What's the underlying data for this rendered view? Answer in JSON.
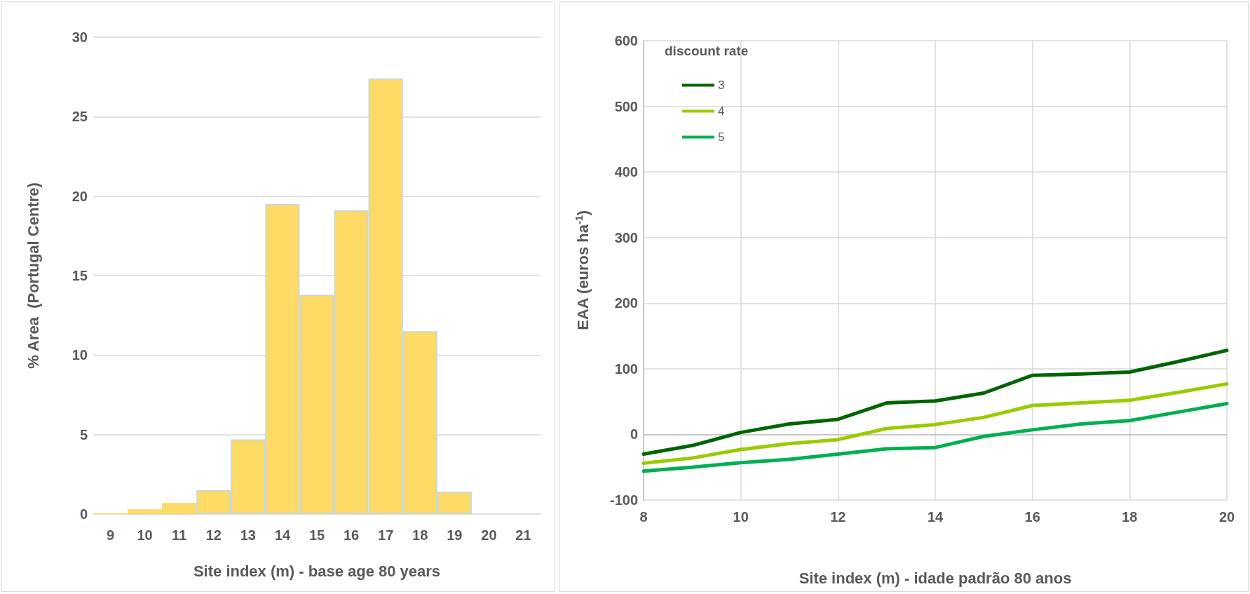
{
  "chart_data": [
    {
      "type": "bar",
      "ylabel": "% Area  (Portugal Centre)",
      "xlabel": "Site index (m) - base age 80 years",
      "categories": [
        "9",
        "10",
        "11",
        "12",
        "13",
        "14",
        "15",
        "16",
        "17",
        "18",
        "19",
        "20",
        "21"
      ],
      "values": [
        0.05,
        0.3,
        0.7,
        1.5,
        4.7,
        19.5,
        13.8,
        19.1,
        27.4,
        11.5,
        1.4,
        0,
        0
      ],
      "color": "#fdd966",
      "ylim": [
        0,
        30
      ],
      "yticks": [
        0,
        5,
        10,
        15,
        20,
        25,
        30
      ],
      "grid": "y",
      "legend": false
    },
    {
      "type": "line",
      "ylabel": "EAA (euros ha$^{-1}$)",
      "xlabel": "Site index (m) - idade padrão 80 anos",
      "legend_title": "discount rate",
      "x": [
        8,
        9,
        10,
        11,
        12,
        13,
        14,
        15,
        16,
        17,
        18,
        19,
        20
      ],
      "series": [
        {
          "name": "3",
          "color": "#006400",
          "values": [
            -30,
            -17,
            3,
            16,
            23,
            48,
            51,
            63,
            90,
            92,
            95,
            111,
            128
          ]
        },
        {
          "name": "4",
          "color": "#99cc00",
          "values": [
            -44,
            -36,
            -23,
            -14,
            -8,
            9,
            15,
            26,
            44,
            48,
            52,
            64,
            77
          ]
        },
        {
          "name": "5",
          "color": "#00b050",
          "values": [
            -56,
            -50,
            -43,
            -38,
            -30,
            -22,
            -20,
            -3,
            7,
            16,
            21,
            34,
            47
          ]
        }
      ],
      "xlim": [
        8,
        20
      ],
      "xticks": [
        8,
        10,
        12,
        14,
        16,
        18,
        20
      ],
      "ylim": [
        -100,
        600
      ],
      "yticks": [
        -100,
        0,
        100,
        200,
        300,
        400,
        500,
        600
      ],
      "grid": true,
      "legend": "top left",
      "marker": "none",
      "line_style": "solid"
    }
  ]
}
